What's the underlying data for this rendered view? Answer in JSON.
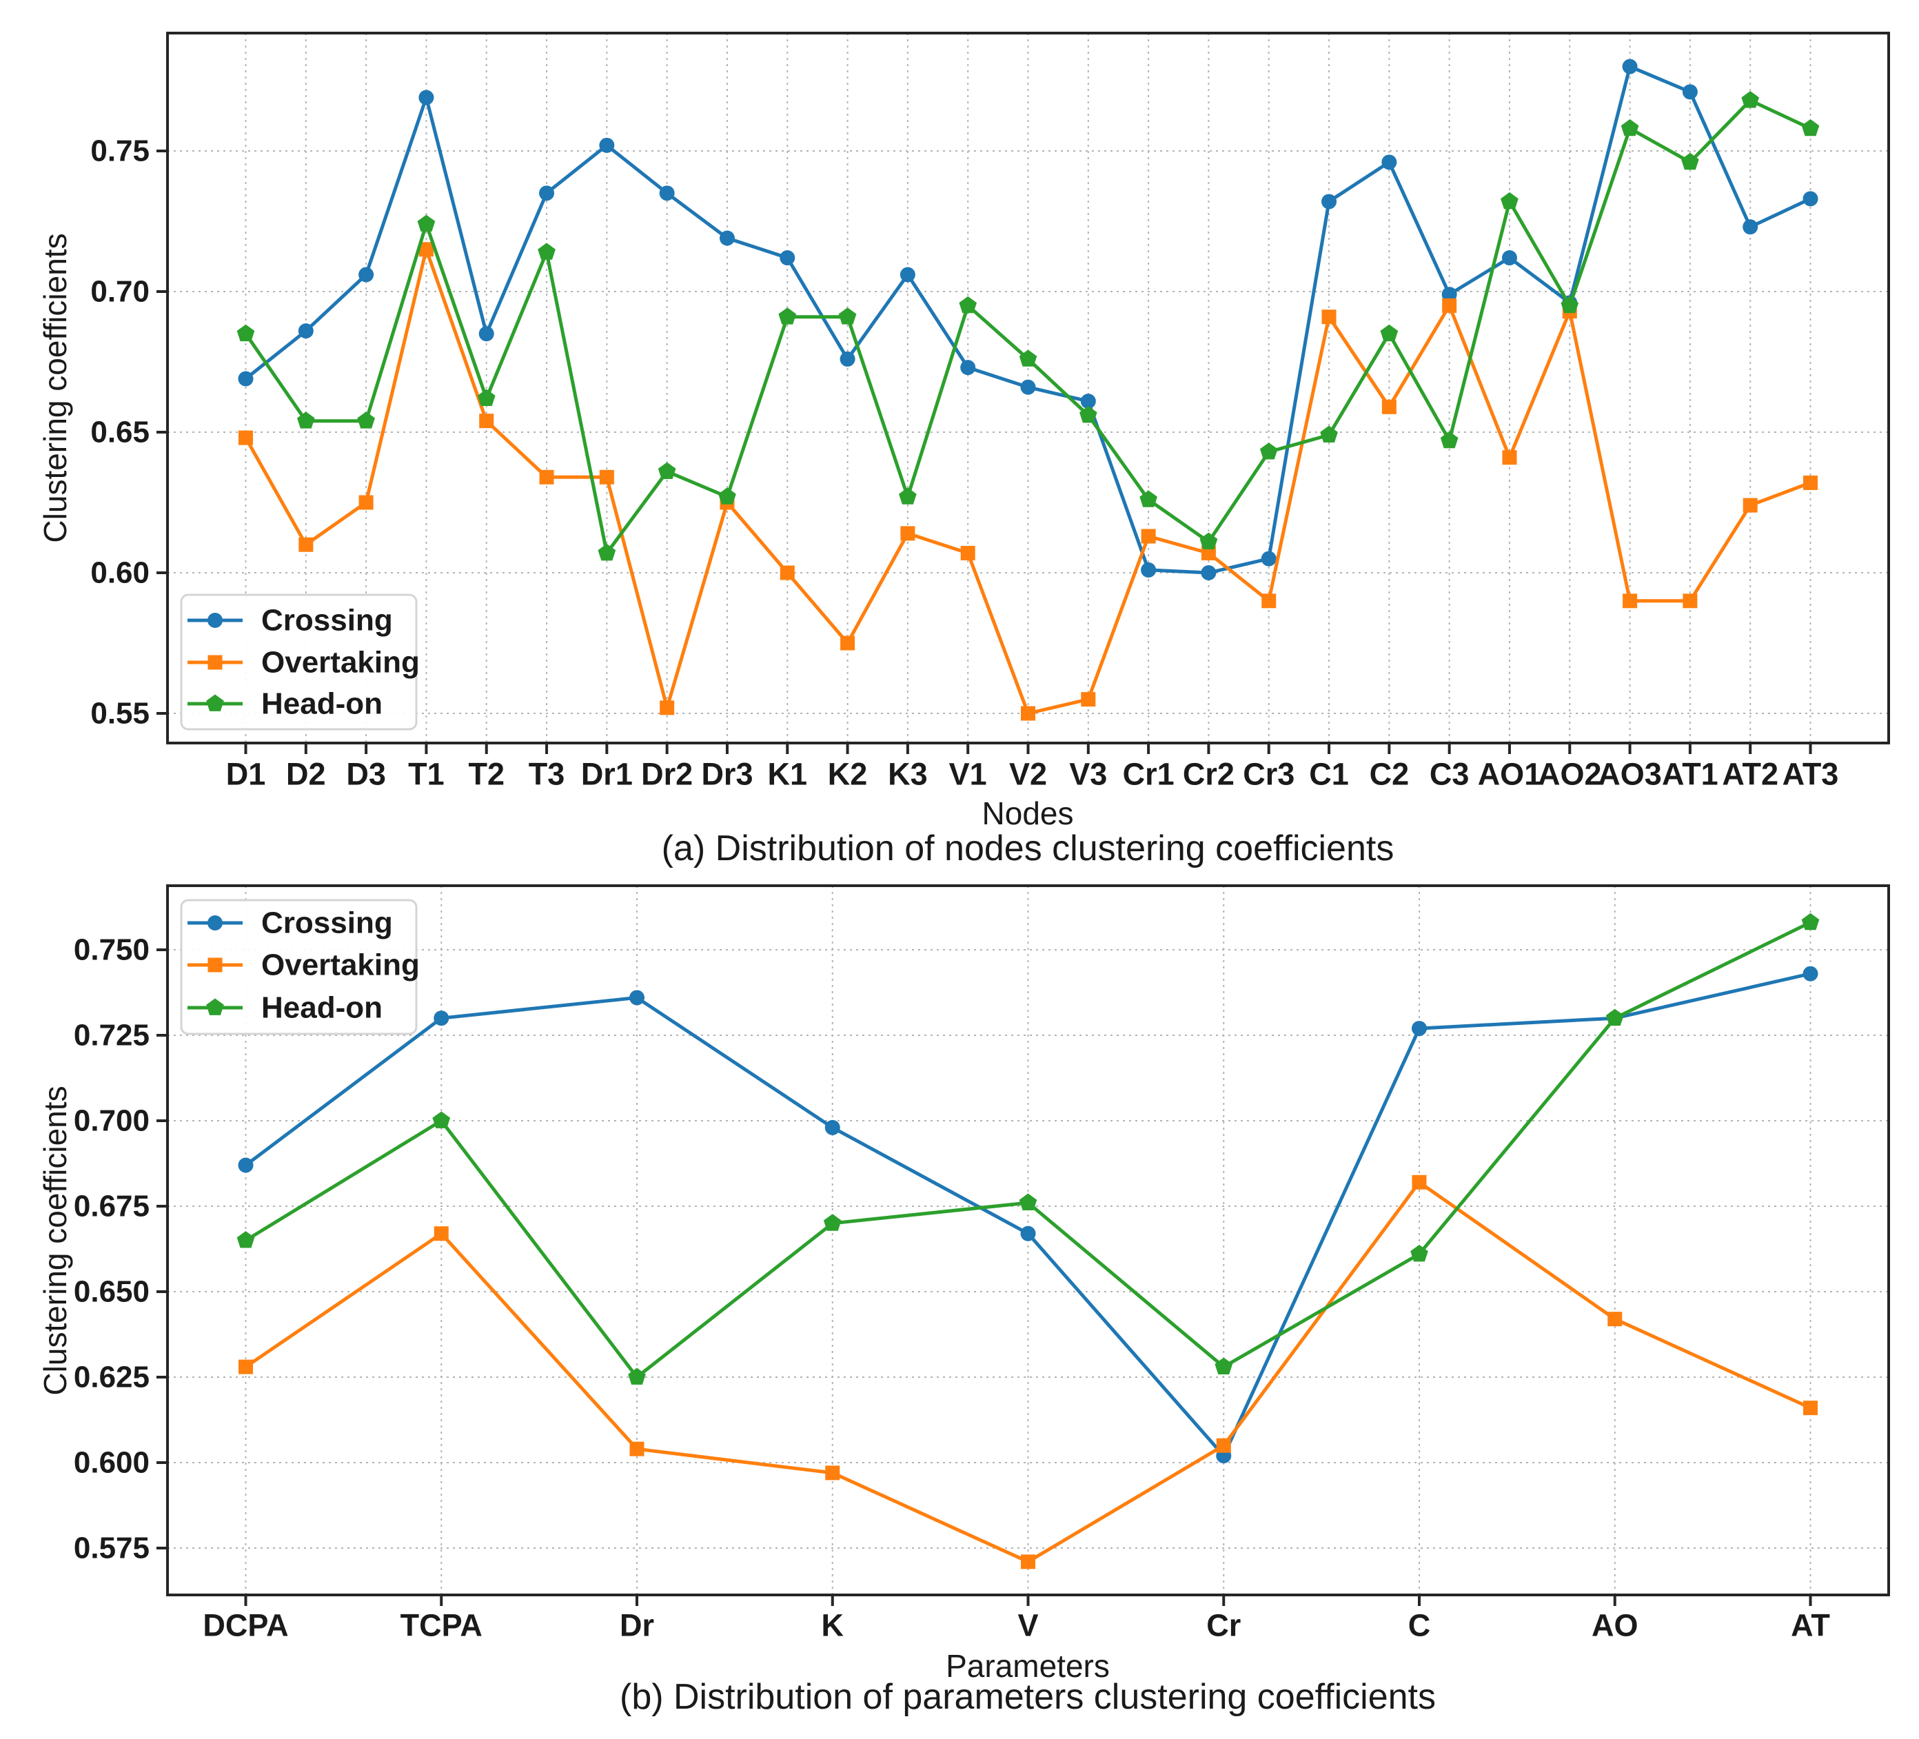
{
  "figure": {
    "background": "#ffffff",
    "grid_color": "#b3b3b3",
    "frame_color": "#262626",
    "text_color": "#1a1a1a"
  },
  "chart_data": [
    {
      "type": "line",
      "title": "(a) Distribution of nodes clustering coefficients",
      "xlabel": "Nodes",
      "ylabel": "Clustering coefficients",
      "grid": true,
      "legend_position": "lower-left",
      "ylim": [
        0.539,
        0.792
      ],
      "ytick_labels": [
        "0.55",
        "0.60",
        "0.65",
        "0.70",
        "0.75"
      ],
      "categories": [
        "D1",
        "D2",
        "D3",
        "T1",
        "T2",
        "T3",
        "Dr1",
        "Dr2",
        "Dr3",
        "K1",
        "K2",
        "K3",
        "V1",
        "V2",
        "V3",
        "Cr1",
        "Cr2",
        "Cr3",
        "C1",
        "C2",
        "C3",
        "AO1",
        "AO2",
        "AO3",
        "AT1",
        "AT2",
        "AT3"
      ],
      "series": [
        {
          "name": "Crossing",
          "color": "#1f77b4",
          "marker": "circle",
          "values": [
            0.669,
            0.686,
            0.706,
            0.769,
            0.685,
            0.735,
            0.752,
            0.735,
            0.719,
            0.712,
            0.676,
            0.706,
            0.673,
            0.666,
            0.661,
            0.601,
            0.6,
            0.605,
            0.732,
            0.746,
            0.699,
            0.712,
            0.696,
            0.78,
            0.771,
            0.723,
            0.733
          ]
        },
        {
          "name": "Overtaking",
          "color": "#ff7f0e",
          "marker": "square",
          "values": [
            0.648,
            0.61,
            0.625,
            0.715,
            0.654,
            0.634,
            0.634,
            0.552,
            0.625,
            0.6,
            0.575,
            0.614,
            0.607,
            0.55,
            0.555,
            0.613,
            0.607,
            0.59,
            0.691,
            0.659,
            0.695,
            0.641,
            0.693,
            0.59,
            0.59,
            0.624,
            0.632
          ]
        },
        {
          "name": "Head-on",
          "color": "#2ca02c",
          "marker": "pentagon",
          "values": [
            0.685,
            0.654,
            0.654,
            0.724,
            0.662,
            0.714,
            0.607,
            0.636,
            0.627,
            0.691,
            0.691,
            0.627,
            0.695,
            0.676,
            0.656,
            0.626,
            0.611,
            0.643,
            0.649,
            0.685,
            0.647,
            0.732,
            0.695,
            0.758,
            0.746,
            0.768,
            0.758
          ]
        }
      ]
    },
    {
      "type": "line",
      "title": "(b) Distribution of parameters clustering coefficients",
      "xlabel": "Parameters",
      "ylabel": "Clustering coefficients",
      "grid": true,
      "legend_position": "upper-left",
      "ylim": [
        0.561,
        0.769
      ],
      "ytick_labels": [
        "0.575",
        "0.600",
        "0.625",
        "0.650",
        "0.675",
        "0.700",
        "0.725",
        "0.750"
      ],
      "categories": [
        "DCPA",
        "TCPA",
        "Dr",
        "K",
        "V",
        "Cr",
        "C",
        "AO",
        "AT"
      ],
      "series": [
        {
          "name": "Crossing",
          "color": "#1f77b4",
          "marker": "circle",
          "values": [
            0.687,
            0.73,
            0.736,
            0.698,
            0.667,
            0.602,
            0.727,
            0.73,
            0.743
          ]
        },
        {
          "name": "Overtaking",
          "color": "#ff7f0e",
          "marker": "square",
          "values": [
            0.628,
            0.667,
            0.604,
            0.597,
            0.571,
            0.605,
            0.682,
            0.642,
            0.616
          ]
        },
        {
          "name": "Head-on",
          "color": "#2ca02c",
          "marker": "pentagon",
          "values": [
            0.665,
            0.7,
            0.625,
            0.67,
            0.676,
            0.628,
            0.661,
            0.73,
            0.758
          ]
        }
      ]
    }
  ]
}
